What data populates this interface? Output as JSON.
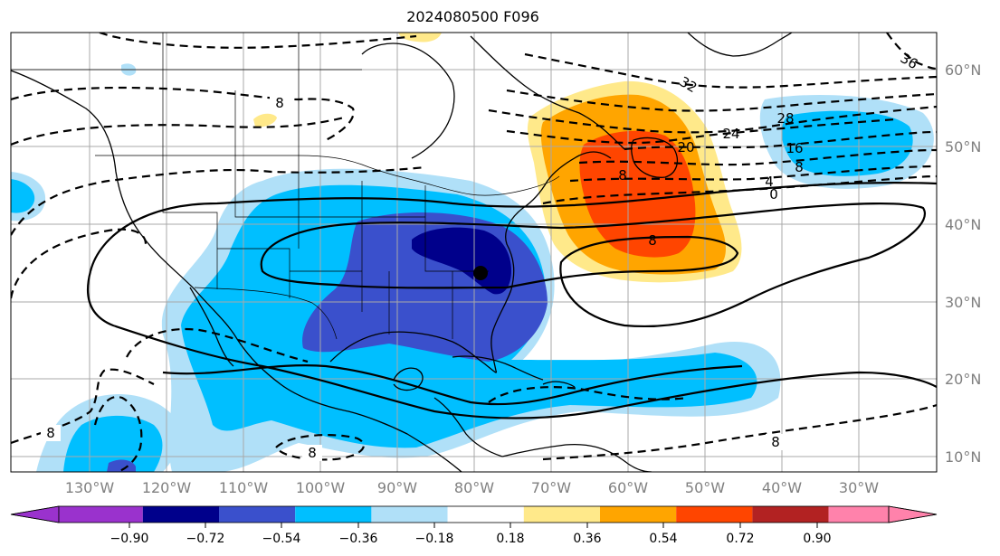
{
  "title": "2024080500 F096",
  "lat_labels": [
    "60°N",
    "50°N",
    "40°N",
    "30°N",
    "20°N",
    "10°N"
  ],
  "lon_labels": [
    "130°W",
    "120°W",
    "110°W",
    "100°W",
    "90°W",
    "80°W",
    "70°W",
    "60°W",
    "50°W",
    "40°W",
    "30°W"
  ],
  "colorbar": {
    "ticks": [
      "−0.90",
      "−0.72",
      "−0.54",
      "−0.36",
      "−0.18",
      "0.18",
      "0.36",
      "0.54",
      "0.72",
      "0.90"
    ],
    "colors": [
      "#9a32cd",
      "#00008b",
      "#3a50cc",
      "#00bfff",
      "#b0e0f8",
      "#ffffff",
      "#ffe98a",
      "#ffa500",
      "#ff4500",
      "#b22222",
      "#ff82ab"
    ]
  },
  "contour_labels": [
    "8",
    "8",
    "8",
    "8",
    "8",
    "8",
    "0",
    "4",
    "8",
    "16",
    "20",
    "24",
    "28",
    "32",
    "36"
  ],
  "marker": "storm-center-dot"
}
